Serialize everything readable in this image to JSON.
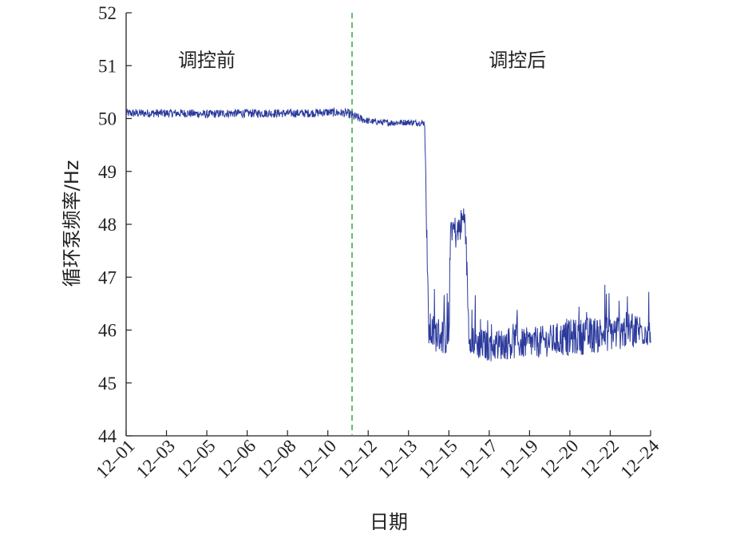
{
  "chart_data": {
    "type": "line",
    "title": "",
    "xlabel": "日期",
    "ylabel": "循环泵频率/Hz",
    "ylim": [
      44,
      52
    ],
    "y_ticks": [
      44,
      45,
      46,
      47,
      48,
      49,
      50,
      51,
      52
    ],
    "x_tick_labels": [
      "12–01",
      "12–03",
      "12–05",
      "12–06",
      "12–08",
      "12–10",
      "12–12",
      "12–13",
      "12–15",
      "12–17",
      "12–19",
      "12–20",
      "12–22",
      "12–24"
    ],
    "grid": false,
    "legend": "none",
    "line_color": "#2b3a9c",
    "divider": {
      "x_label": "12–10",
      "offset_ticks": 0.6,
      "color": "#3cb04a",
      "style": "dashed"
    },
    "region_labels": [
      {
        "text": "调控前",
        "at_tick": 2.0,
        "y": 51.1
      },
      {
        "text": "调控后",
        "at_tick": 9.7,
        "y": 51.1
      }
    ],
    "series": [
      {
        "x_ticks": [
          0,
          0.5,
          1,
          1.5,
          2,
          2.5,
          3,
          3.5,
          4,
          4.5,
          5,
          5.5,
          5.6,
          6,
          6.5,
          7,
          7.2,
          7.4,
          7.45,
          7.5,
          7.6,
          7.8,
          8,
          8.05,
          8.2,
          8.35,
          8.4,
          8.5,
          8.7,
          9,
          9.5,
          10,
          10.5,
          11,
          11.5,
          12,
          12.5,
          13
        ],
        "y": [
          50.1,
          50.1,
          50.1,
          50.1,
          50.08,
          50.1,
          50.1,
          50.1,
          50.1,
          50.1,
          50.12,
          50.1,
          50.05,
          49.95,
          49.92,
          49.93,
          49.92,
          49.92,
          47.9,
          46.0,
          45.95,
          45.9,
          45.85,
          48.0,
          47.8,
          48.1,
          48.2,
          45.9,
          45.75,
          45.7,
          45.75,
          45.75,
          45.8,
          45.85,
          45.9,
          45.95,
          46.0,
          46.0
        ],
        "noise": [
          0.08,
          0.08,
          0.08,
          0.08,
          0.08,
          0.08,
          0.08,
          0.08,
          0.08,
          0.08,
          0.08,
          0.08,
          0.1,
          0.06,
          0.06,
          0.06,
          0.06,
          0.06,
          0.3,
          0.35,
          0.35,
          0.35,
          0.35,
          0.35,
          0.3,
          0.3,
          0.3,
          0.3,
          0.3,
          0.3,
          0.3,
          0.3,
          0.3,
          0.35,
          0.35,
          0.35,
          0.35,
          0.3
        ]
      }
    ]
  }
}
